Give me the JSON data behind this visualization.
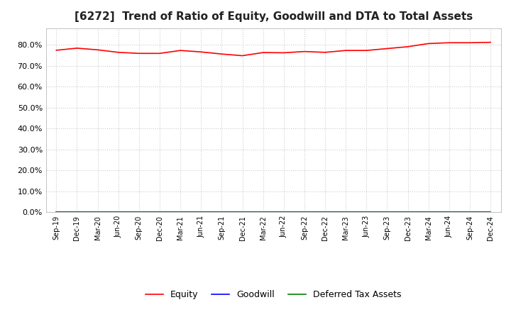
{
  "title": "[6272]  Trend of Ratio of Equity, Goodwill and DTA to Total Assets",
  "title_fontsize": 11,
  "background_color": "#ffffff",
  "plot_bg_color": "#ffffff",
  "grid_color": "#cccccc",
  "ylim": [
    0,
    0.88
  ],
  "yticks": [
    0.0,
    0.1,
    0.2,
    0.3,
    0.4,
    0.5,
    0.6,
    0.7,
    0.8
  ],
  "ytick_labels": [
    "0.0%",
    "10.0%",
    "20.0%",
    "30.0%",
    "40.0%",
    "50.0%",
    "60.0%",
    "70.0%",
    "80.0%"
  ],
  "x_labels": [
    "Sep-19",
    "Dec-19",
    "Mar-20",
    "Jun-20",
    "Sep-20",
    "Dec-20",
    "Mar-21",
    "Jun-21",
    "Sep-21",
    "Dec-21",
    "Mar-22",
    "Jun-22",
    "Sep-22",
    "Dec-22",
    "Mar-23",
    "Jun-23",
    "Sep-23",
    "Dec-23",
    "Mar-24",
    "Jun-24",
    "Sep-24",
    "Dec-24"
  ],
  "equity": [
    0.774,
    0.784,
    0.776,
    0.764,
    0.759,
    0.759,
    0.773,
    0.766,
    0.756,
    0.748,
    0.763,
    0.762,
    0.768,
    0.764,
    0.773,
    0.773,
    0.782,
    0.791,
    0.806,
    0.81,
    0.81,
    0.812
  ],
  "goodwill": [
    0.0,
    0.0,
    0.0,
    0.0,
    0.0,
    0.0,
    0.0,
    0.0,
    0.0,
    0.0,
    0.0,
    0.0,
    0.0,
    0.0,
    0.0,
    0.0,
    0.0,
    0.0,
    0.0,
    0.0,
    0.0,
    0.0
  ],
  "dta": [
    0.0,
    0.0,
    0.0,
    0.0,
    0.0,
    0.0,
    0.0,
    0.0,
    0.0,
    0.0,
    0.0,
    0.0,
    0.0,
    0.0,
    0.0,
    0.0,
    0.0,
    0.0,
    0.0,
    0.0,
    0.0,
    0.0
  ],
  "equity_color": "#ff0000",
  "goodwill_color": "#0000ff",
  "dta_color": "#008000",
  "legend_labels": [
    "Equity",
    "Goodwill",
    "Deferred Tax Assets"
  ]
}
